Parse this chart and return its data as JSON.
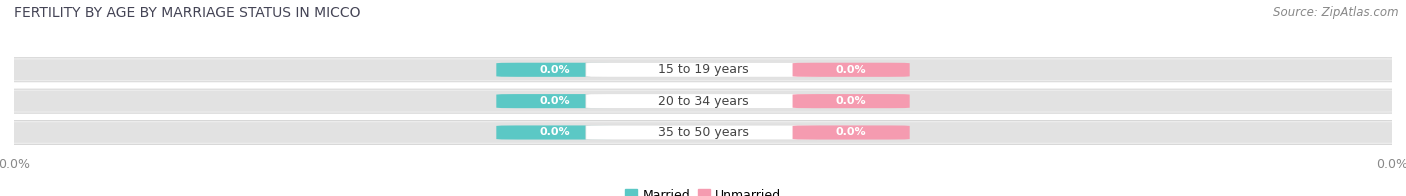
{
  "title": "FERTILITY BY AGE BY MARRIAGE STATUS IN MICCO",
  "source_text": "Source: ZipAtlas.com",
  "categories": [
    "15 to 19 years",
    "20 to 34 years",
    "35 to 50 years"
  ],
  "married_values": [
    0.0,
    0.0,
    0.0
  ],
  "unmarried_values": [
    0.0,
    0.0,
    0.0
  ],
  "married_color": "#5bc8c5",
  "unmarried_color": "#f59bb0",
  "bar_bg_color": "#e2e2e2",
  "bar_top_color": "#ececec",
  "label_bg_color": "#f5f5f5",
  "title_fontsize": 10,
  "label_fontsize": 9,
  "tick_fontsize": 9,
  "source_fontsize": 8.5,
  "value_fontsize": 8,
  "cat_fontsize": 9,
  "figsize": [
    14.06,
    1.96
  ],
  "dpi": 100
}
